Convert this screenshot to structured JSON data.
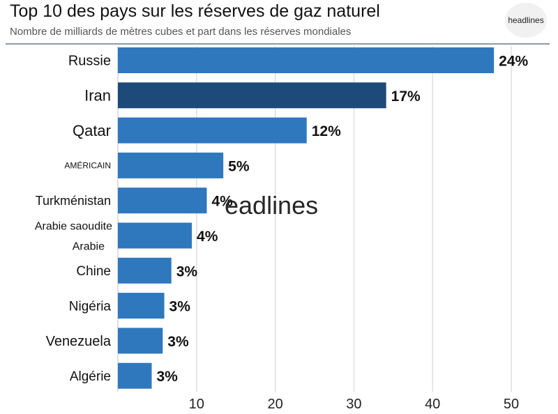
{
  "header": {
    "title": "Top 10 des pays sur les réserves de gaz naturel",
    "subtitle": "Nombre de milliards de mètres cubes et part dans les réserves mondiales",
    "logo_text": "headlines",
    "watermark_text": "eadlines"
  },
  "colors": {
    "bar": "#2f78be",
    "bar_highlight": "#1d4a78",
    "grid": "#cfcfcf",
    "text": "#111111"
  },
  "chart_data": {
    "type": "bar",
    "orientation": "horizontal",
    "title": "Top 10 des pays sur les réserves de gaz naturel",
    "subtitle": "Nombre de milliards de mètres cubes et part dans les réserves mondiales",
    "categories": [
      "Russie",
      "Iran",
      "Qatar",
      "AMÉRICAIN",
      "Turkménistan",
      "Arabie saoudite Arabie",
      "Chine",
      "Nigéria",
      "Venezuela",
      "Algérie"
    ],
    "category_lines": [
      [
        "Russie"
      ],
      [
        "Iran"
      ],
      [
        "Qatar"
      ],
      [
        "AMÉRICAIN"
      ],
      [
        "Turkménistan"
      ],
      [
        "Arabie saoudite",
        "Arabie"
      ],
      [
        "Chine"
      ],
      [
        "Nigéria"
      ],
      [
        "Venezuela"
      ],
      [
        "Algérie"
      ]
    ],
    "values": [
      47.8,
      34.1,
      24.0,
      13.4,
      11.3,
      9.4,
      6.8,
      5.9,
      5.7,
      4.3
    ],
    "labels": [
      "24%",
      "17%",
      "12%",
      "5%",
      "4%",
      "4%",
      "3%",
      "3%",
      "3%",
      "3%"
    ],
    "highlight_index": 1,
    "xlim": [
      0,
      50
    ],
    "xticks": [
      10,
      20,
      30,
      40,
      50
    ],
    "grid": true,
    "xlabel": "",
    "ylabel": ""
  }
}
